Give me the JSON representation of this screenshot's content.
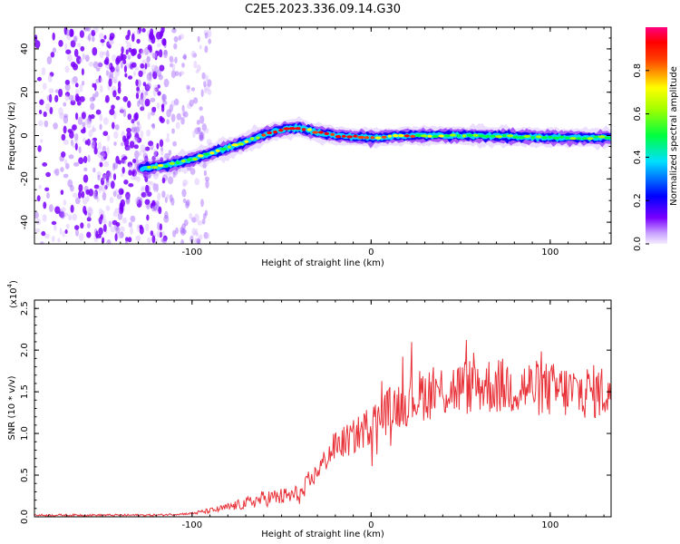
{
  "chart_data": [
    {
      "type": "heatmap",
      "title": "C2E5.2023.336.09.14.G30",
      "xlabel": "Height of straight line (km)",
      "ylabel": "Frequency (Hz)",
      "xlim": [
        -188,
        134
      ],
      "ylim": [
        -50,
        50
      ],
      "x_ticks": [
        "-100",
        "0",
        "100"
      ],
      "y_ticks": [
        "-40",
        "-20",
        "0",
        "20",
        "40"
      ],
      "colorbar": {
        "label": "Normalized spectral amplitude",
        "range": [
          0,
          1
        ],
        "ticks": [
          "0.0",
          "0.2",
          "0.4",
          "0.6",
          "0.8"
        ],
        "colors": [
          "#f0e6ff",
          "#c8a0ff",
          "#7a00ff",
          "#0000ff",
          "#00e0ff",
          "#00ff00",
          "#ffff00",
          "#ff0000",
          "#ff0080"
        ]
      },
      "ridge": {
        "x": [
          -128,
          -115,
          -100,
          -85,
          -70,
          -58,
          -48,
          -40,
          -30,
          -20,
          -10,
          0,
          20,
          50,
          80,
          110,
          134
        ],
        "y": [
          -15,
          -14,
          -11,
          -7,
          -3,
          1,
          3,
          3.5,
          1.5,
          0,
          -0.5,
          -1,
          0,
          0,
          -0.5,
          -1,
          -1
        ]
      },
      "noise_region": {
        "x_from": -188,
        "x_to": -90
      }
    },
    {
      "type": "line",
      "series": [
        {
          "name": "SNR",
          "color": "#e8333a"
        }
      ],
      "xlabel": "Height of straight line (km)",
      "ylabel": "SNR (10 * v/v)",
      "y_scale_label": "(x10",
      "y_scale_exp": "4",
      "y_scale_close": ")",
      "xlim": [
        -188,
        134
      ],
      "ylim": [
        0,
        2.6
      ],
      "x_ticks": [
        "-100",
        "0",
        "100"
      ],
      "y_ticks": [
        "0.0",
        "0.5",
        "1.0",
        "1.5",
        "2.0",
        "2.5"
      ],
      "trend": {
        "x": [
          -188,
          -120,
          -100,
          -85,
          -70,
          -60,
          -45,
          -38,
          -30,
          -20,
          -10,
          0,
          10,
          15,
          30,
          60,
          90,
          110,
          125,
          134
        ],
        "y": [
          0.02,
          0.02,
          0.04,
          0.09,
          0.16,
          0.22,
          0.25,
          0.28,
          0.55,
          0.85,
          0.95,
          1.12,
          1.28,
          1.35,
          1.48,
          1.58,
          1.55,
          1.5,
          1.5,
          1.5
        ]
      }
    }
  ]
}
